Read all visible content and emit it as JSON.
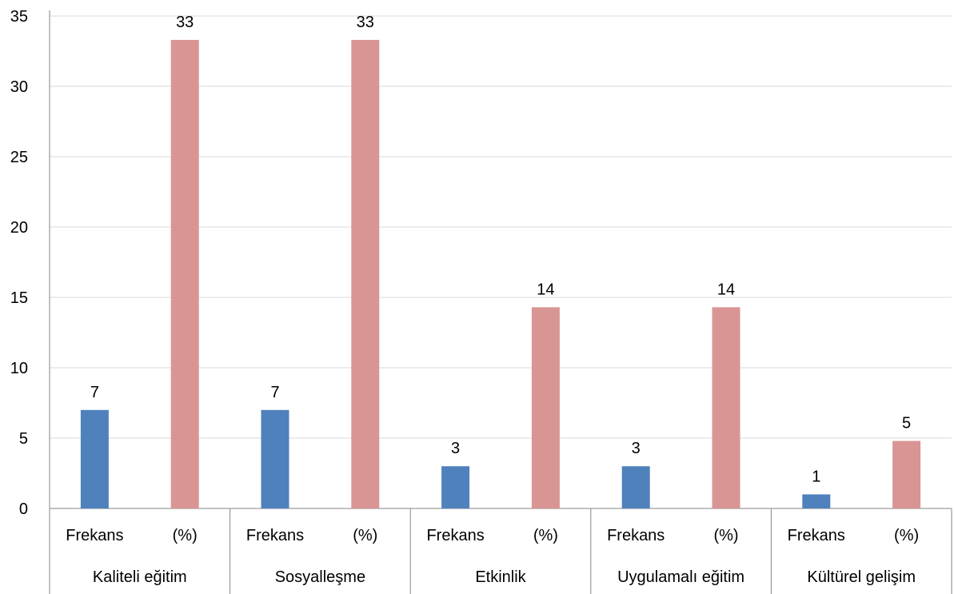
{
  "chart_data": {
    "type": "bar",
    "title": "",
    "xlabel": "",
    "ylabel": "",
    "ylim": [
      0,
      35
    ],
    "yticks": [
      0,
      5,
      10,
      15,
      20,
      25,
      30,
      35
    ],
    "grid": true,
    "legend": "none",
    "categories": [
      "Kaliteli eğitim",
      "Sosyalleşme",
      "Etkinlik",
      "Uygulamalı eğitim",
      "Kültürel gelişim"
    ],
    "subcategories": [
      "Frekans",
      "(%)"
    ],
    "series": [
      {
        "values": [
          7,
          7,
          3,
          3,
          1
        ],
        "color": "#4F81BD"
      },
      {
        "values": [
          33.3,
          33.3,
          14.3,
          14.3,
          4.8
        ],
        "color": "#D99594"
      }
    ],
    "data_labels": [
      [
        "7",
        "7",
        "3",
        "3",
        "1"
      ],
      [
        "33",
        "33",
        "14",
        "14",
        "5"
      ]
    ]
  }
}
